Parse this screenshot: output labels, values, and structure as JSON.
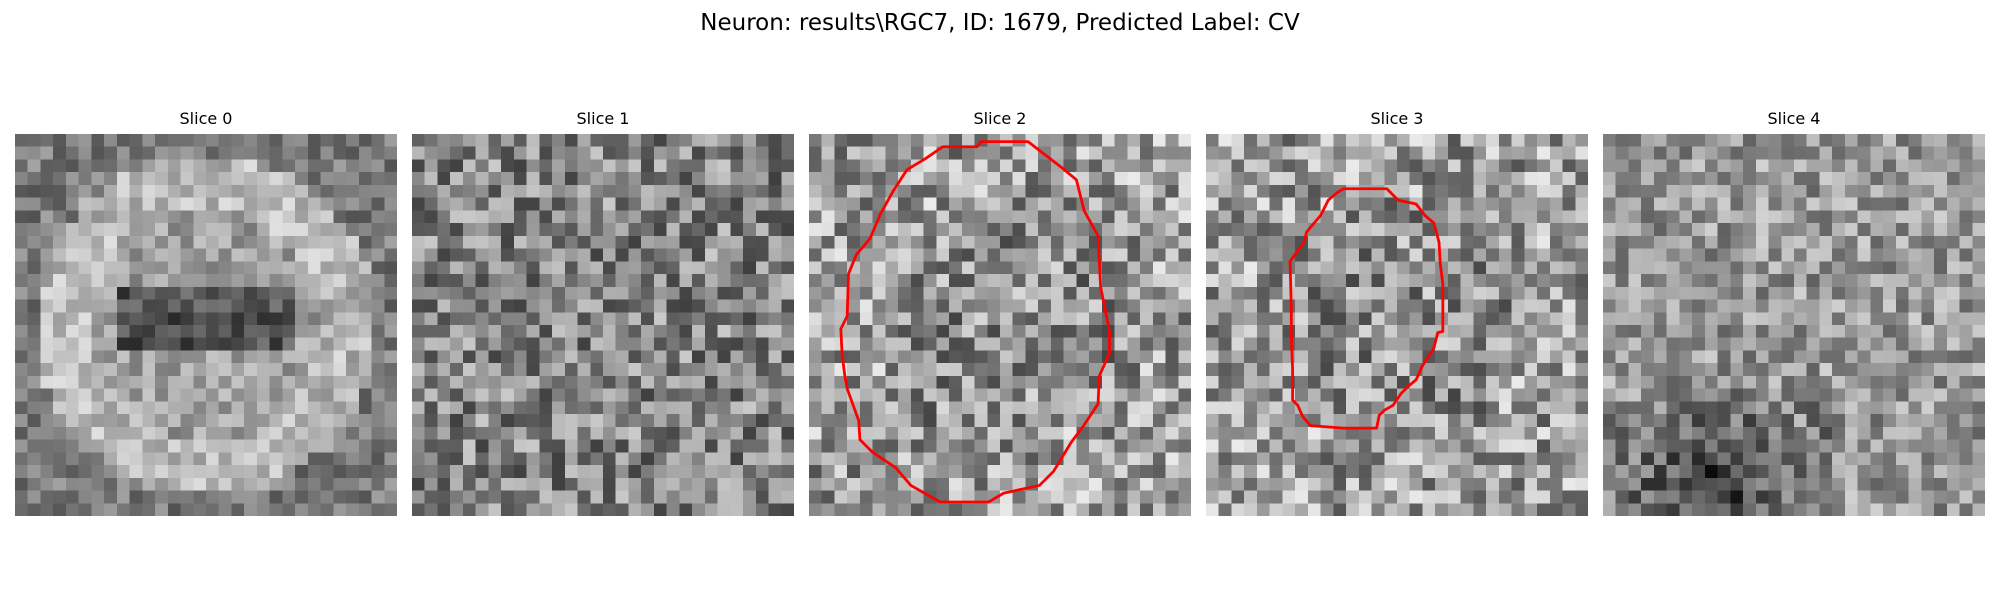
{
  "figure": {
    "suptitle": "Neuron: results\\RGC7, ID: 1679, Predicted Label: CV"
  },
  "panels": [
    {
      "title": "Slice 0",
      "contour": false,
      "pattern": "ring-dark-center",
      "seed": 11
    },
    {
      "title": "Slice 1",
      "contour": false,
      "pattern": "uniform-noise",
      "seed": 23
    },
    {
      "title": "Slice 2",
      "contour": true,
      "contour_color": "#ff0000",
      "pattern": "bright-noise",
      "seed": 37
    },
    {
      "title": "Slice 3",
      "contour": true,
      "contour_color": "#ff0000",
      "pattern": "bright-noise",
      "seed": 41
    },
    {
      "title": "Slice 4",
      "contour": false,
      "pattern": "dark-bottom-left",
      "seed": 53
    }
  ],
  "image_grid": {
    "rows": 30,
    "cols": 30,
    "colormap": "gray"
  }
}
